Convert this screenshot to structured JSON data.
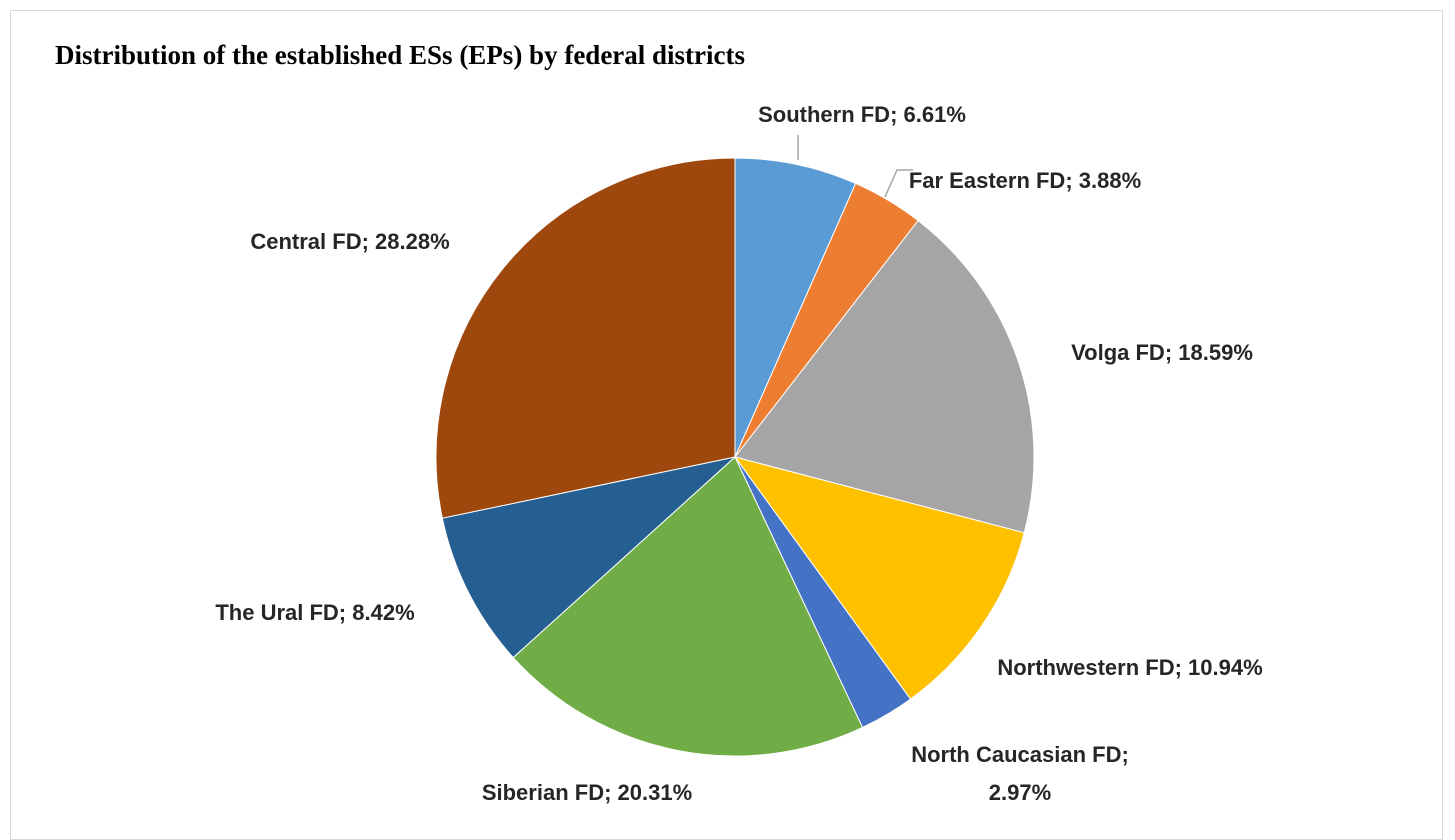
{
  "chart_data": {
    "type": "pie",
    "title": "Distribution of the established ESs (EPs) by federal districts",
    "categories": [
      "Southern FD;",
      "Far Eastern FD;",
      "Volga FD;",
      "Northwestern FD;",
      "North Caucasian FD;",
      "Siberian FD;",
      "The Ural FD;",
      "Central FD;"
    ],
    "values": [
      6.61,
      3.88,
      18.59,
      10.94,
      2.97,
      20.31,
      8.42,
      28.28
    ],
    "value_labels": [
      "6.61%",
      "3.88%",
      "18.59%",
      "10.94%",
      "2.97%",
      "20.31%",
      "8.42%",
      "28.28%"
    ],
    "colors": [
      "#5b9bd5",
      "#ed7d31",
      "#a5a5a5",
      "#ffc000",
      "#4472c4",
      "#70ad47",
      "#255e91",
      "#9e480e"
    ]
  }
}
